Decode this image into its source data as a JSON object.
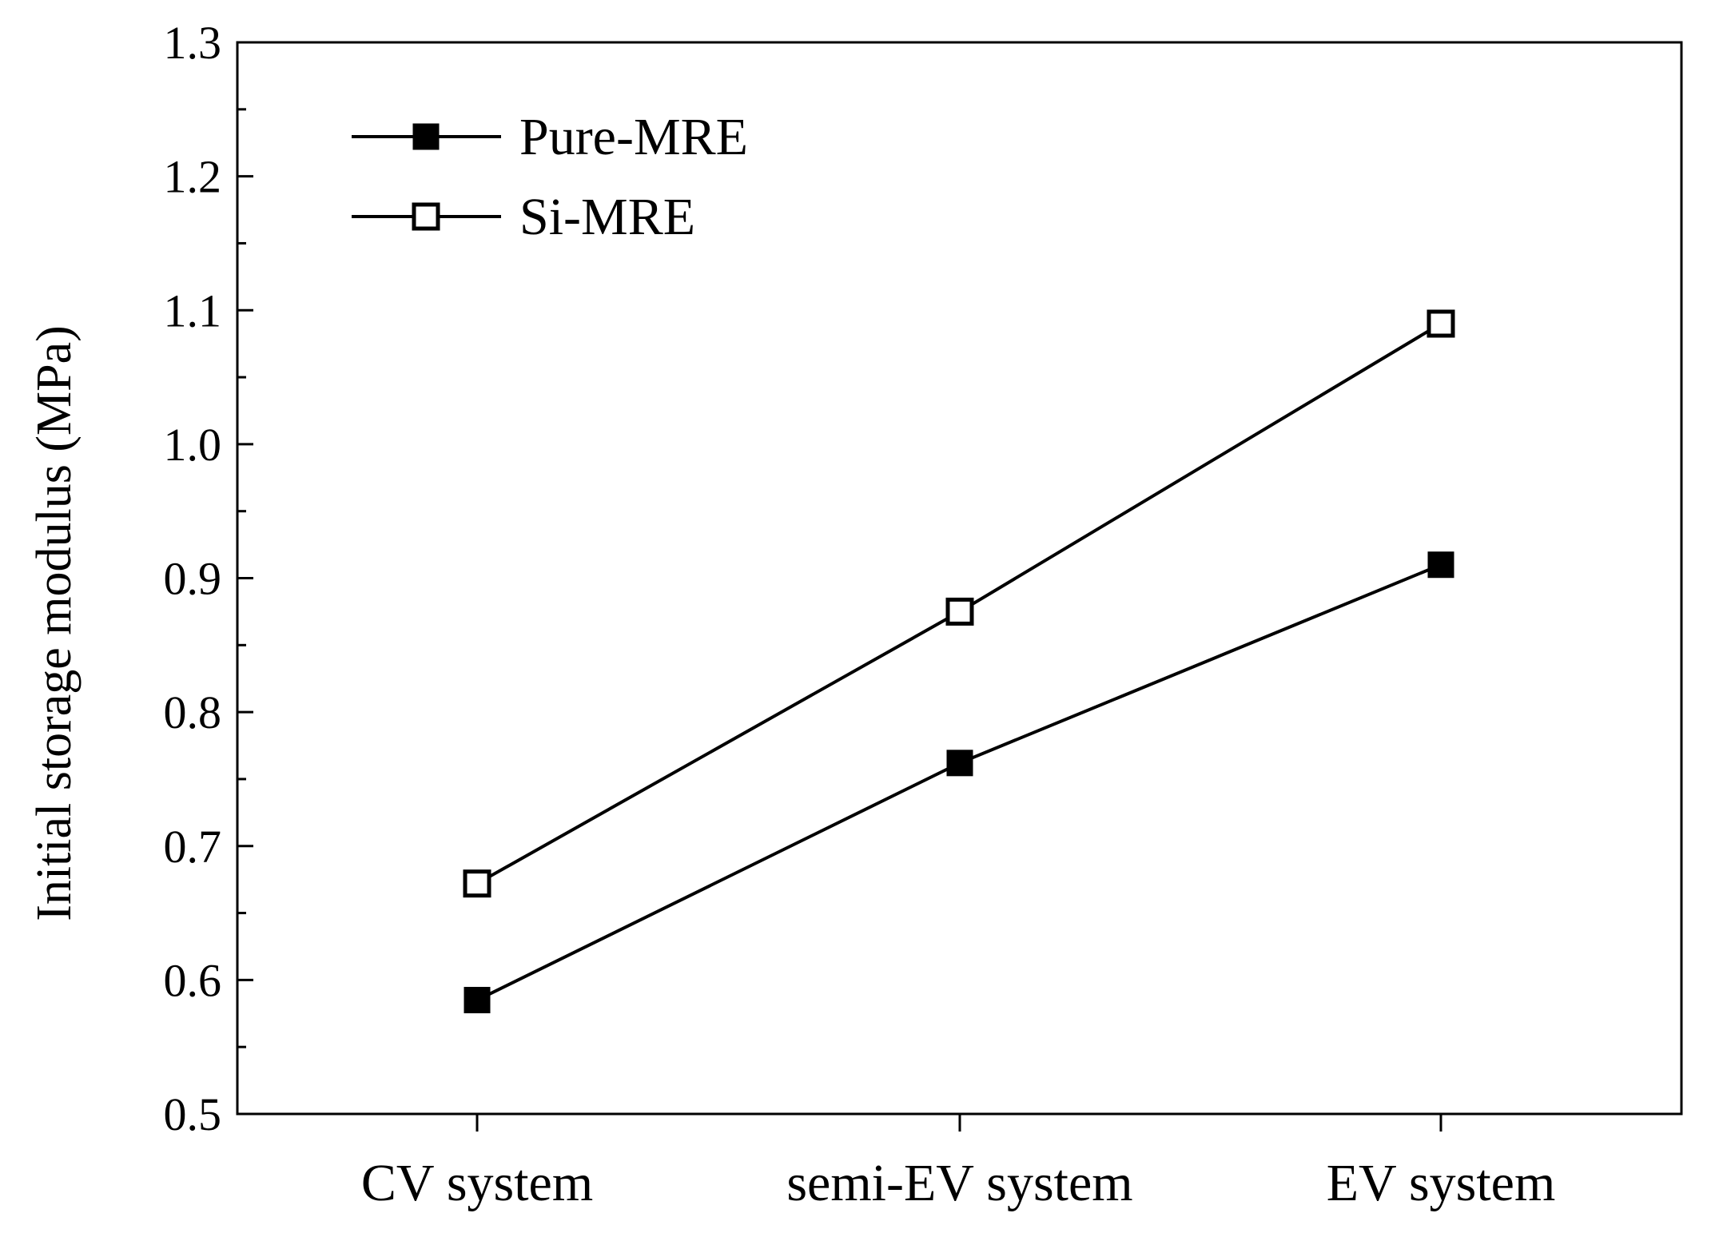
{
  "chart_data": {
    "type": "line",
    "categories": [
      "CV system",
      "semi-EV system",
      "EV system"
    ],
    "series": [
      {
        "name": "Pure-MRE",
        "values": [
          0.585,
          0.762,
          0.91
        ],
        "marker": "filled-square"
      },
      {
        "name": "Si-MRE",
        "values": [
          0.672,
          0.875,
          1.09
        ],
        "marker": "open-square"
      }
    ],
    "title": "",
    "xlabel": "",
    "ylabel": "Initial storage modulus (MPa)",
    "ylim": [
      0.5,
      1.3
    ],
    "yticks": [
      "0.5",
      "0.6",
      "0.7",
      "0.8",
      "0.9",
      "1.0",
      "1.1",
      "1.2",
      "1.3"
    ],
    "grid": false,
    "legend_position": "top-left",
    "colors": {
      "line": "#000000",
      "marker_fill": "#000000",
      "background": "#ffffff"
    }
  }
}
